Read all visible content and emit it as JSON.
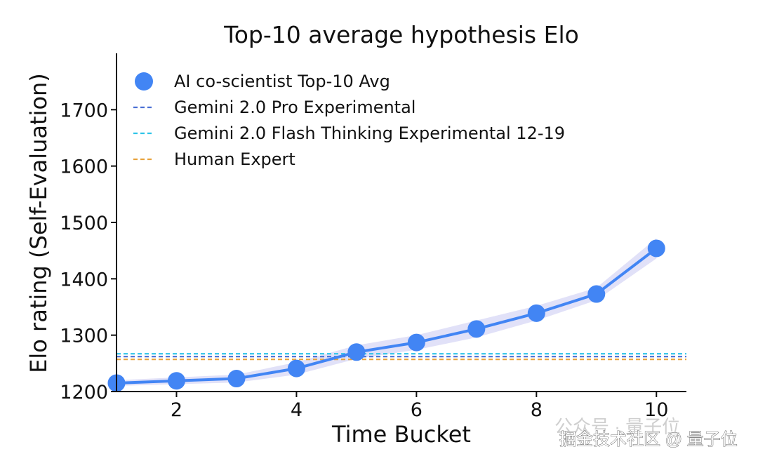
{
  "chart_data": {
    "type": "line",
    "title": "Top-10 average hypothesis Elo",
    "xlabel": "Time Bucket",
    "ylabel": "Elo rating (Self-Evaluation)",
    "xlim": [
      1,
      10.5
    ],
    "ylim": [
      1200,
      1800
    ],
    "xticks": [
      2,
      4,
      6,
      8,
      10
    ],
    "yticks": [
      1200,
      1300,
      1400,
      1500,
      1600,
      1700
    ],
    "grid": false,
    "legend_position": "top-left",
    "series": [
      {
        "name": "AI co-scientist Top-10 Avg",
        "style": "line-with-markers",
        "color": "#4285f4",
        "band_color": "#dcdcf7",
        "x": [
          1,
          2,
          3,
          4,
          5,
          6,
          7,
          8,
          9,
          10
        ],
        "y": [
          1215,
          1219,
          1223,
          1241,
          1270,
          1287,
          1311,
          1339,
          1373,
          1454
        ],
        "band_low": [
          1210,
          1213,
          1216,
          1230,
          1258,
          1274,
          1296,
          1326,
          1362,
          1436
        ],
        "band_high": [
          1220,
          1225,
          1230,
          1252,
          1282,
          1300,
          1326,
          1352,
          1384,
          1472
        ]
      },
      {
        "name": "Gemini 2.0 Pro Experimental",
        "style": "dashed-hline",
        "color": "#4a6fd4",
        "y": 1262
      },
      {
        "name": "Gemini 2.0 Flash Thinking Experimental 12-19",
        "style": "dashed-hline",
        "color": "#2ec4e8",
        "y": 1267
      },
      {
        "name": "Human Expert",
        "style": "dashed-hline",
        "color": "#e8a23c",
        "y": 1257
      }
    ]
  },
  "watermark": {
    "faint_text": "公众号 · 量子位",
    "text": "掘金技术社区 @ 量子位"
  }
}
